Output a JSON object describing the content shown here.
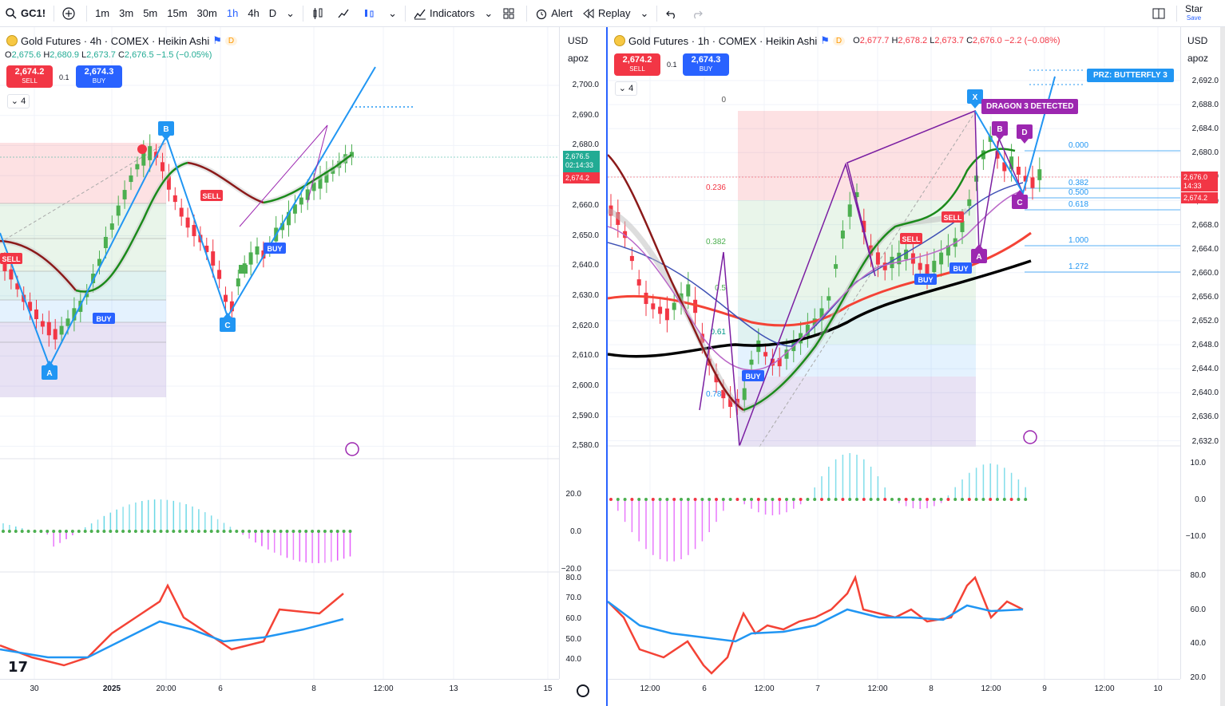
{
  "toolbar": {
    "symbol": "GC1!",
    "intervals": [
      "1m",
      "3m",
      "5m",
      "15m",
      "30m",
      "1h",
      "4h",
      "D"
    ],
    "active_interval": "1h",
    "indicators_label": "Indicators",
    "alert_label": "Alert",
    "replay_label": "Replay",
    "star_label": "Star",
    "save_label": "Save"
  },
  "left": {
    "title": "Gold Futures · 4h · COMEX · Heikin Ashi",
    "ohlc": {
      "o": "2,675.6",
      "h": "2,680.9",
      "l": "2,673.7",
      "c": "2,676.5",
      "chg": "−1.5 (−0.05%)"
    },
    "sell_price": "2,674.2",
    "sell_label": "SELL",
    "buy_price": "2,674.3",
    "buy_label": "BUY",
    "qty": "0.1",
    "collapse": "4",
    "currency": "USD",
    "scale_mode": "apoz",
    "price_labels": [
      "2,700.0",
      "2,690.0",
      "2,680.0",
      "2,670.0",
      "2,660.0",
      "2,650.0",
      "2,640.0",
      "2,630.0",
      "2,620.0",
      "2,610.0",
      "2,600.0",
      "2,590.0",
      "2,580.0"
    ],
    "last_price": "2,676.5",
    "countdown": "02:14:33",
    "bid_price": "2,674.2",
    "osc_labels": [
      "20.0",
      "0.0",
      "−20.0"
    ],
    "rsi_labels": [
      "80.0",
      "70.0",
      "60.0",
      "50.0",
      "40.0"
    ],
    "time_labels": [
      "30",
      "2025",
      "20:00",
      "6",
      "8",
      "12:00",
      "13",
      "15"
    ],
    "pattern_points": [
      "A",
      "B",
      "C"
    ],
    "signals": [
      "SELL",
      "BUY",
      "SELL",
      "BUY"
    ]
  },
  "right": {
    "title": "Gold Futures · 1h · COMEX · Heikin Ashi",
    "ohlc": {
      "o": "2,677.7",
      "h": "2,678.2",
      "l": "2,673.7",
      "c": "2,676.0",
      "chg": "−2.2 (−0.08%)"
    },
    "sell_price": "2,674.2",
    "sell_label": "SELL",
    "buy_price": "2,674.3",
    "buy_label": "BUY",
    "qty": "0.1",
    "collapse": "4",
    "currency": "USD",
    "scale_mode": "apoz",
    "price_labels": [
      "2,692.0",
      "2,688.0",
      "2,684.0",
      "2,680.0",
      "2,676.0",
      "2,672.0",
      "2,668.0",
      "2,664.0",
      "2,660.0",
      "2,656.0",
      "2,652.0",
      "2,648.0",
      "2,644.0",
      "2,640.0",
      "2,636.0",
      "2,632.0"
    ],
    "last_price": "2,676.0",
    "countdown": "14:33",
    "bid_price": "2,674.2",
    "fib_labels": [
      "0",
      "0.236",
      "0.382",
      "0.5",
      "0.61",
      "0.786"
    ],
    "prz_label": "PRZ: BUTTERFLY 3",
    "dragon_label": "DRAGON 3 DETECTED",
    "ratio_labels": [
      "0.000",
      "0.382",
      "0.500",
      "0.618",
      "1.000",
      "1.272"
    ],
    "pattern_points": [
      "X",
      "A",
      "B",
      "C",
      "D"
    ],
    "signals": [
      "SELL",
      "SELL",
      "BUY",
      "BUY",
      "BUY"
    ],
    "osc_labels": [
      "10.0",
      "0.0",
      "−10.0"
    ],
    "rsi_labels": [
      "80.0",
      "60.0",
      "40.0",
      "20.0"
    ],
    "time_labels": [
      "12:00",
      "6",
      "12:00",
      "7",
      "12:00",
      "8",
      "12:00",
      "9",
      "12:00",
      "10"
    ]
  }
}
